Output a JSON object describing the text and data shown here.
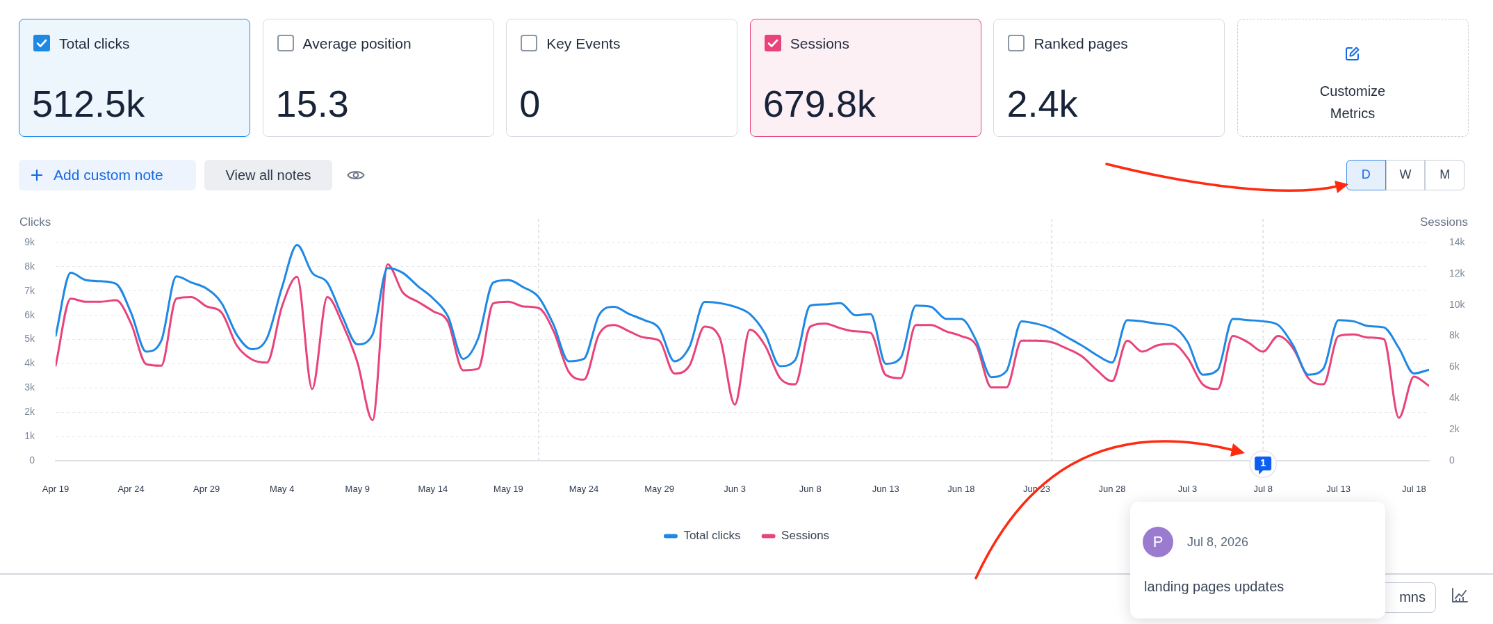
{
  "chart_data": [
    {
      "type": "other",
      "annotations": [
        "Total clicks",
        "512.5k",
        "Average position",
        "15.3",
        "Key Events",
        "0",
        "Sessions",
        "679.8k",
        "Ranked pages",
        "2.4k",
        "Customize Metrics"
      ]
    },
    {
      "type": "line",
      "x": [
        "--04-19",
        "--04-20",
        "--04-21",
        "--04-22",
        "--04-23",
        "--04-24",
        "--04-25",
        "--04-26",
        "--04-27",
        "--04-28",
        "--04-29",
        "--04-30",
        "--05-01",
        "--05-02",
        "--05-03",
        "--05-04",
        "--05-05",
        "--05-06",
        "--05-07",
        "--05-08",
        "--05-09",
        "--05-10",
        "--05-11",
        "--05-12",
        "--05-13",
        "--05-14",
        "--05-15",
        "--05-16",
        "--05-17",
        "--05-18",
        "--05-19",
        "--05-20",
        "--05-21",
        "--05-22",
        "--05-23",
        "--05-24",
        "--05-25",
        "--05-26",
        "--05-27",
        "--05-28",
        "--05-29",
        "--05-30",
        "--05-31",
        "--06-01",
        "--06-02",
        "--06-03",
        "--06-04",
        "--06-05",
        "--06-06",
        "--06-07",
        "--06-08",
        "--06-09",
        "--06-10",
        "--06-11",
        "--06-12",
        "--06-13",
        "--06-14",
        "--06-15",
        "--06-16",
        "--06-17",
        "--06-18",
        "--06-19",
        "--06-20",
        "--06-21",
        "--06-22",
        "--06-23",
        "--06-24",
        "--06-25",
        "--06-26",
        "--06-27",
        "--06-28",
        "--06-29",
        "--06-30",
        "--07-01",
        "--07-02",
        "--07-03",
        "--07-04",
        "--07-05",
        "--07-06",
        "--07-07",
        "--07-08",
        "--07-09",
        "--07-10",
        "--07-11",
        "--07-12",
        "--07-13",
        "--07-14",
        "--07-15",
        "--07-16",
        "--07-17",
        "--07-18",
        "--07-19"
      ],
      "series": [
        {
          "name": "Total clicks",
          "color": "#1e88e5",
          "values": [
            5150,
            7750,
            7450,
            7400,
            7300,
            6100,
            4500,
            4950,
            7600,
            7350,
            7100,
            6500,
            5200,
            4600,
            5050,
            7150,
            8900,
            7750,
            7350,
            5950,
            4800,
            5200,
            7950,
            7750,
            7200,
            6700,
            5950,
            4200,
            5050,
            7350,
            7450,
            7150,
            6750,
            5600,
            4100,
            4200,
            6000,
            6350,
            6050,
            5800,
            5450,
            4100,
            4700,
            6550,
            6500,
            6350,
            6050,
            5250,
            3900,
            4150,
            6400,
            6450,
            6500,
            6000,
            6050,
            4000,
            4250,
            6400,
            6350,
            5850,
            5850,
            4950,
            3450,
            3700,
            5750,
            5650,
            5450,
            5100,
            4750,
            4350,
            4050,
            5800,
            5750,
            5650,
            5550,
            4900,
            3550,
            3750,
            5850,
            5800,
            5750,
            5600,
            4750,
            3550,
            3800,
            5800,
            5750,
            5550,
            5500,
            4650,
            3600,
            3750
          ]
        },
        {
          "name": "Sessions",
          "color": "#e8437a",
          "axis": "y2",
          "values": [
            6100,
            10400,
            10200,
            10200,
            10300,
            8800,
            6200,
            6100,
            10400,
            10500,
            9900,
            9500,
            7400,
            6500,
            6300,
            9900,
            11800,
            4600,
            10500,
            8800,
            6300,
            2600,
            12600,
            10800,
            10200,
            9600,
            8900,
            5800,
            5900,
            10100,
            10200,
            9900,
            9800,
            8300,
            5700,
            5200,
            8100,
            8700,
            8300,
            7900,
            7700,
            5600,
            6100,
            8600,
            7900,
            3600,
            8400,
            7400,
            5300,
            4900,
            8600,
            8800,
            8500,
            8300,
            8200,
            5500,
            5300,
            8700,
            8700,
            8300,
            8000,
            7400,
            4700,
            4700,
            7700,
            7700,
            7600,
            7200,
            6700,
            5800,
            5100,
            7700,
            7000,
            7400,
            7500,
            6600,
            4900,
            4600,
            8000,
            7600,
            7000,
            8000,
            7200,
            5300,
            4900,
            8000,
            8100,
            7900,
            7800,
            2750,
            5400,
            4800
          ]
        }
      ],
      "xlim": [
        "--04-19",
        "--07-19"
      ],
      "xticks": [
        {
          "value": "--04-19",
          "label": "Apr 19"
        },
        {
          "value": "--04-24",
          "label": "Apr 24"
        },
        {
          "value": "--04-29",
          "label": "Apr 29"
        },
        {
          "value": "--05-04",
          "label": "May 4"
        },
        {
          "value": "--05-09",
          "label": "May 9"
        },
        {
          "value": "--05-14",
          "label": "May 14"
        },
        {
          "value": "--05-19",
          "label": "May 19"
        },
        {
          "value": "--05-24",
          "label": "May 24"
        },
        {
          "value": "--05-29",
          "label": "May 29"
        },
        {
          "value": "--06-03",
          "label": "Jun 3"
        },
        {
          "value": "--06-08",
          "label": "Jun 8"
        },
        {
          "value": "--06-13",
          "label": "Jun 13"
        },
        {
          "value": "--06-18",
          "label": "Jun 18"
        },
        {
          "value": "--06-23",
          "label": "Jun 23"
        },
        {
          "value": "--06-28",
          "label": "Jun 28"
        },
        {
          "value": "--07-03",
          "label": "Jul 3"
        },
        {
          "value": "--07-08",
          "label": "Jul 8"
        },
        {
          "value": "--07-13",
          "label": "Jul 13"
        },
        {
          "value": "--07-18",
          "label": "Jul 18"
        }
      ],
      "ylim": [
        0,
        9000
      ],
      "yticks": [
        0,
        {
          "value": 1000,
          "label": "1k"
        },
        {
          "value": 2000,
          "label": "2k"
        },
        {
          "value": 3000,
          "label": "3k"
        },
        {
          "value": 4000,
          "label": "4k"
        },
        {
          "value": 5000,
          "label": "5k"
        },
        {
          "value": 6000,
          "label": "6k"
        },
        {
          "value": 7000,
          "label": "7k"
        },
        {
          "value": 8000,
          "label": "8k"
        },
        {
          "value": 9000,
          "label": "9k"
        }
      ],
      "y2lim": [
        0,
        14000
      ],
      "y2ticks": [
        0,
        {
          "value": 2000,
          "label": "2k"
        },
        {
          "value": 4000,
          "label": "4k"
        },
        {
          "value": 6000,
          "label": "6k"
        },
        {
          "value": 8000,
          "label": "8k"
        },
        {
          "value": 10000,
          "label": "10k"
        },
        {
          "value": 12000,
          "label": "12k"
        },
        {
          "value": 14000,
          "label": "14k"
        }
      ],
      "ylabel": "Clicks",
      "y2label": "Sessions",
      "grid": "y",
      "legend": "bottom",
      "marker": "none",
      "ref_lines": [
        {
          "axis": "x",
          "value": "--05-21",
          "color": "#cfd4da",
          "line_style": "dashed"
        },
        {
          "axis": "x",
          "value": "--06-24",
          "color": "#cfd4da",
          "line_style": "dashed"
        },
        {
          "axis": "x",
          "value": "--07-08",
          "label": "1",
          "color": "#cfd4da",
          "line_style": "dashed"
        }
      ],
      "annotations": [
        "Add custom note",
        "View all notes",
        "D",
        "W",
        "M",
        "P",
        "Jul 8, 2026",
        "landing pages updates",
        "mns"
      ]
    }
  ]
}
